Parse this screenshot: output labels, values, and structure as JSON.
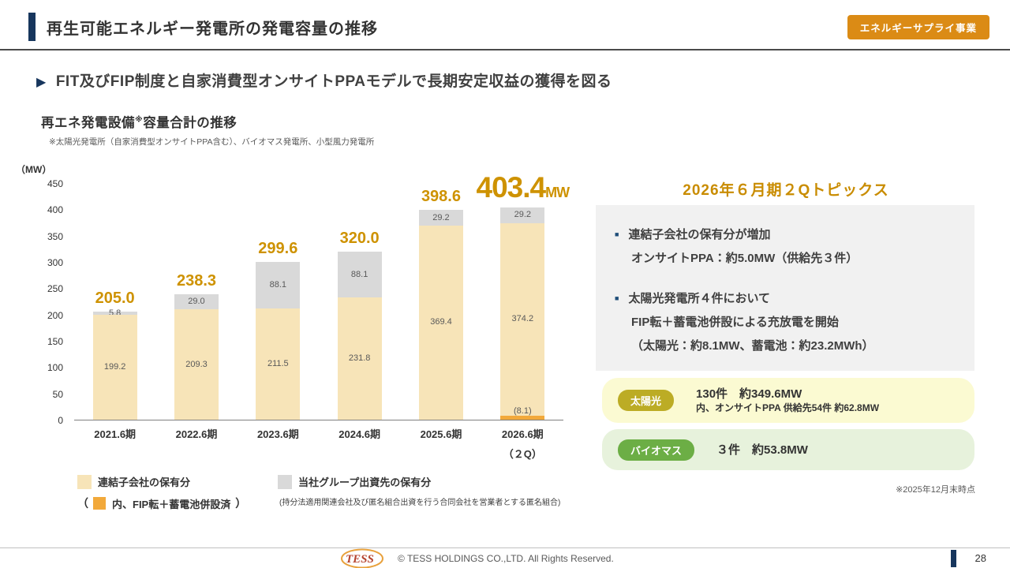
{
  "header": {
    "title": "再生可能エネルギー発電所の発電容量の推移",
    "badge": "エネルギーサプライ事業"
  },
  "lead": {
    "arrow": "▶",
    "text": "FIT及びFIP制度と自家消費型オンサイトPPAモデルで長期安定収益の獲得を図る"
  },
  "chart_heading": {
    "title_prefix": "再エネ発電設備",
    "title_sup": "※",
    "title_suffix": "容量合計の推移",
    "footnote": "※太陽光発電所（自家消費型オンサイトPPA含む）、バイオマス発電所、小型風力発電所",
    "unit": "（MW）"
  },
  "chart_data": {
    "type": "bar",
    "stacked": true,
    "title": "再エネ発電設備※容量合計の推移",
    "categories": [
      "2021.6期",
      "2022.6期",
      "2023.6期",
      "2024.6期",
      "2025.6期",
      "2026.6期"
    ],
    "last_category_note": "（２Q）",
    "series": [
      {
        "name": "連結子会社の保有分",
        "color": "#F7E4B8",
        "values": [
          199.2,
          209.3,
          211.5,
          231.8,
          369.4,
          374.2
        ]
      },
      {
        "name": "当社グループ出資先の保有分",
        "color": "#D9D9D9",
        "values": [
          5.8,
          29.0,
          88.1,
          88.1,
          29.2,
          29.2
        ]
      }
    ],
    "inset_series": {
      "name": "内、FIP転＋蓄電池併設済",
      "color": "#F2A93B",
      "parent": "連結子会社の保有分",
      "bar_index": 5,
      "value": 8.1,
      "label": "(8.1)"
    },
    "totals": [
      "205.0",
      "238.3",
      "299.6",
      "320.0",
      "398.6",
      "403.4"
    ],
    "total_suffix": "MW",
    "ylabel_unit": "（MW）",
    "ylim": [
      0,
      450
    ],
    "ytick_step": 50,
    "grid": false,
    "legend_position": "bottom"
  },
  "legend": {
    "fip_open": "（",
    "fip_close": "）",
    "group_note": "(持分法適用関連会社及び匿名組合出資を行う合同会社を営業者とする匿名組合)"
  },
  "topics": {
    "title": "2026年６月期２Qトピックス",
    "items": [
      {
        "lines": [
          "連結子会社の保有分が増加",
          "オンサイトPPA：約5.0MW（供給先３件）"
        ]
      },
      {
        "lines": [
          "太陽光発電所４件において",
          "FIP転＋蓄電池併設による充放電を開始",
          "（太陽光：約8.1MW、蓄電池：約23.2MWh）"
        ]
      }
    ]
  },
  "summary": {
    "solar": {
      "badge": "太陽光",
      "line1": "130件　約349.6MW",
      "line2": "内、オンサイトPPA 供給先54件 約62.8MW"
    },
    "biomass": {
      "badge": "バイオマス",
      "line1": "３件　約53.8MW"
    },
    "asof": "※2025年12月末時点"
  },
  "footer": {
    "logo": "TESS",
    "copyright": "© TESS HOLDINGS CO.,LTD. All Rights Reserved.",
    "page": "28"
  }
}
